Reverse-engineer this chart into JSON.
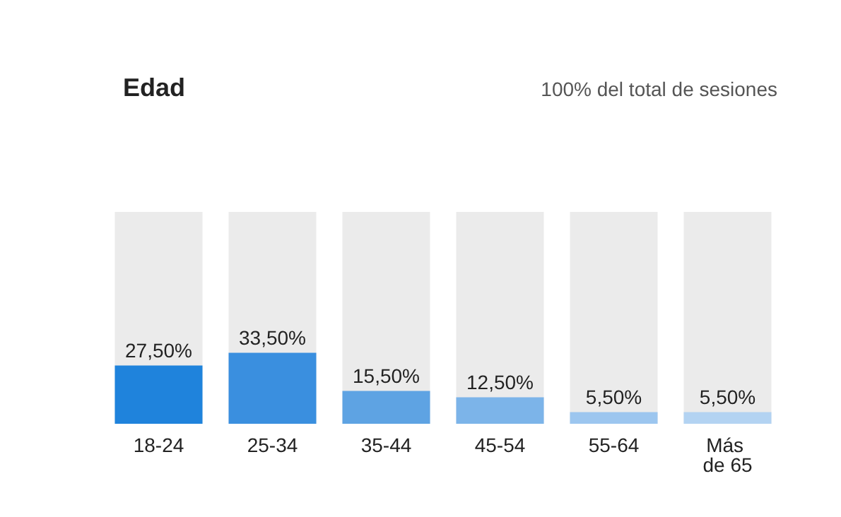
{
  "chart_data": {
    "type": "bar",
    "title": "Edad",
    "subtitle": "100% del total de sesiones",
    "categories": [
      "18-24",
      "25-34",
      "35-44",
      "45-54",
      "55-64",
      "Más de 65"
    ],
    "values": [
      27.5,
      33.5,
      15.5,
      12.5,
      5.5,
      5.5
    ],
    "value_labels": [
      "27,50%",
      "33,50%",
      "15,50%",
      "12,50%",
      "5,50%",
      "5,50%"
    ],
    "colors": [
      "#1f83dc",
      "#3a8fdf",
      "#5ea3e3",
      "#7cb4e9",
      "#9cc6ef",
      "#b3d3f2"
    ]
  }
}
